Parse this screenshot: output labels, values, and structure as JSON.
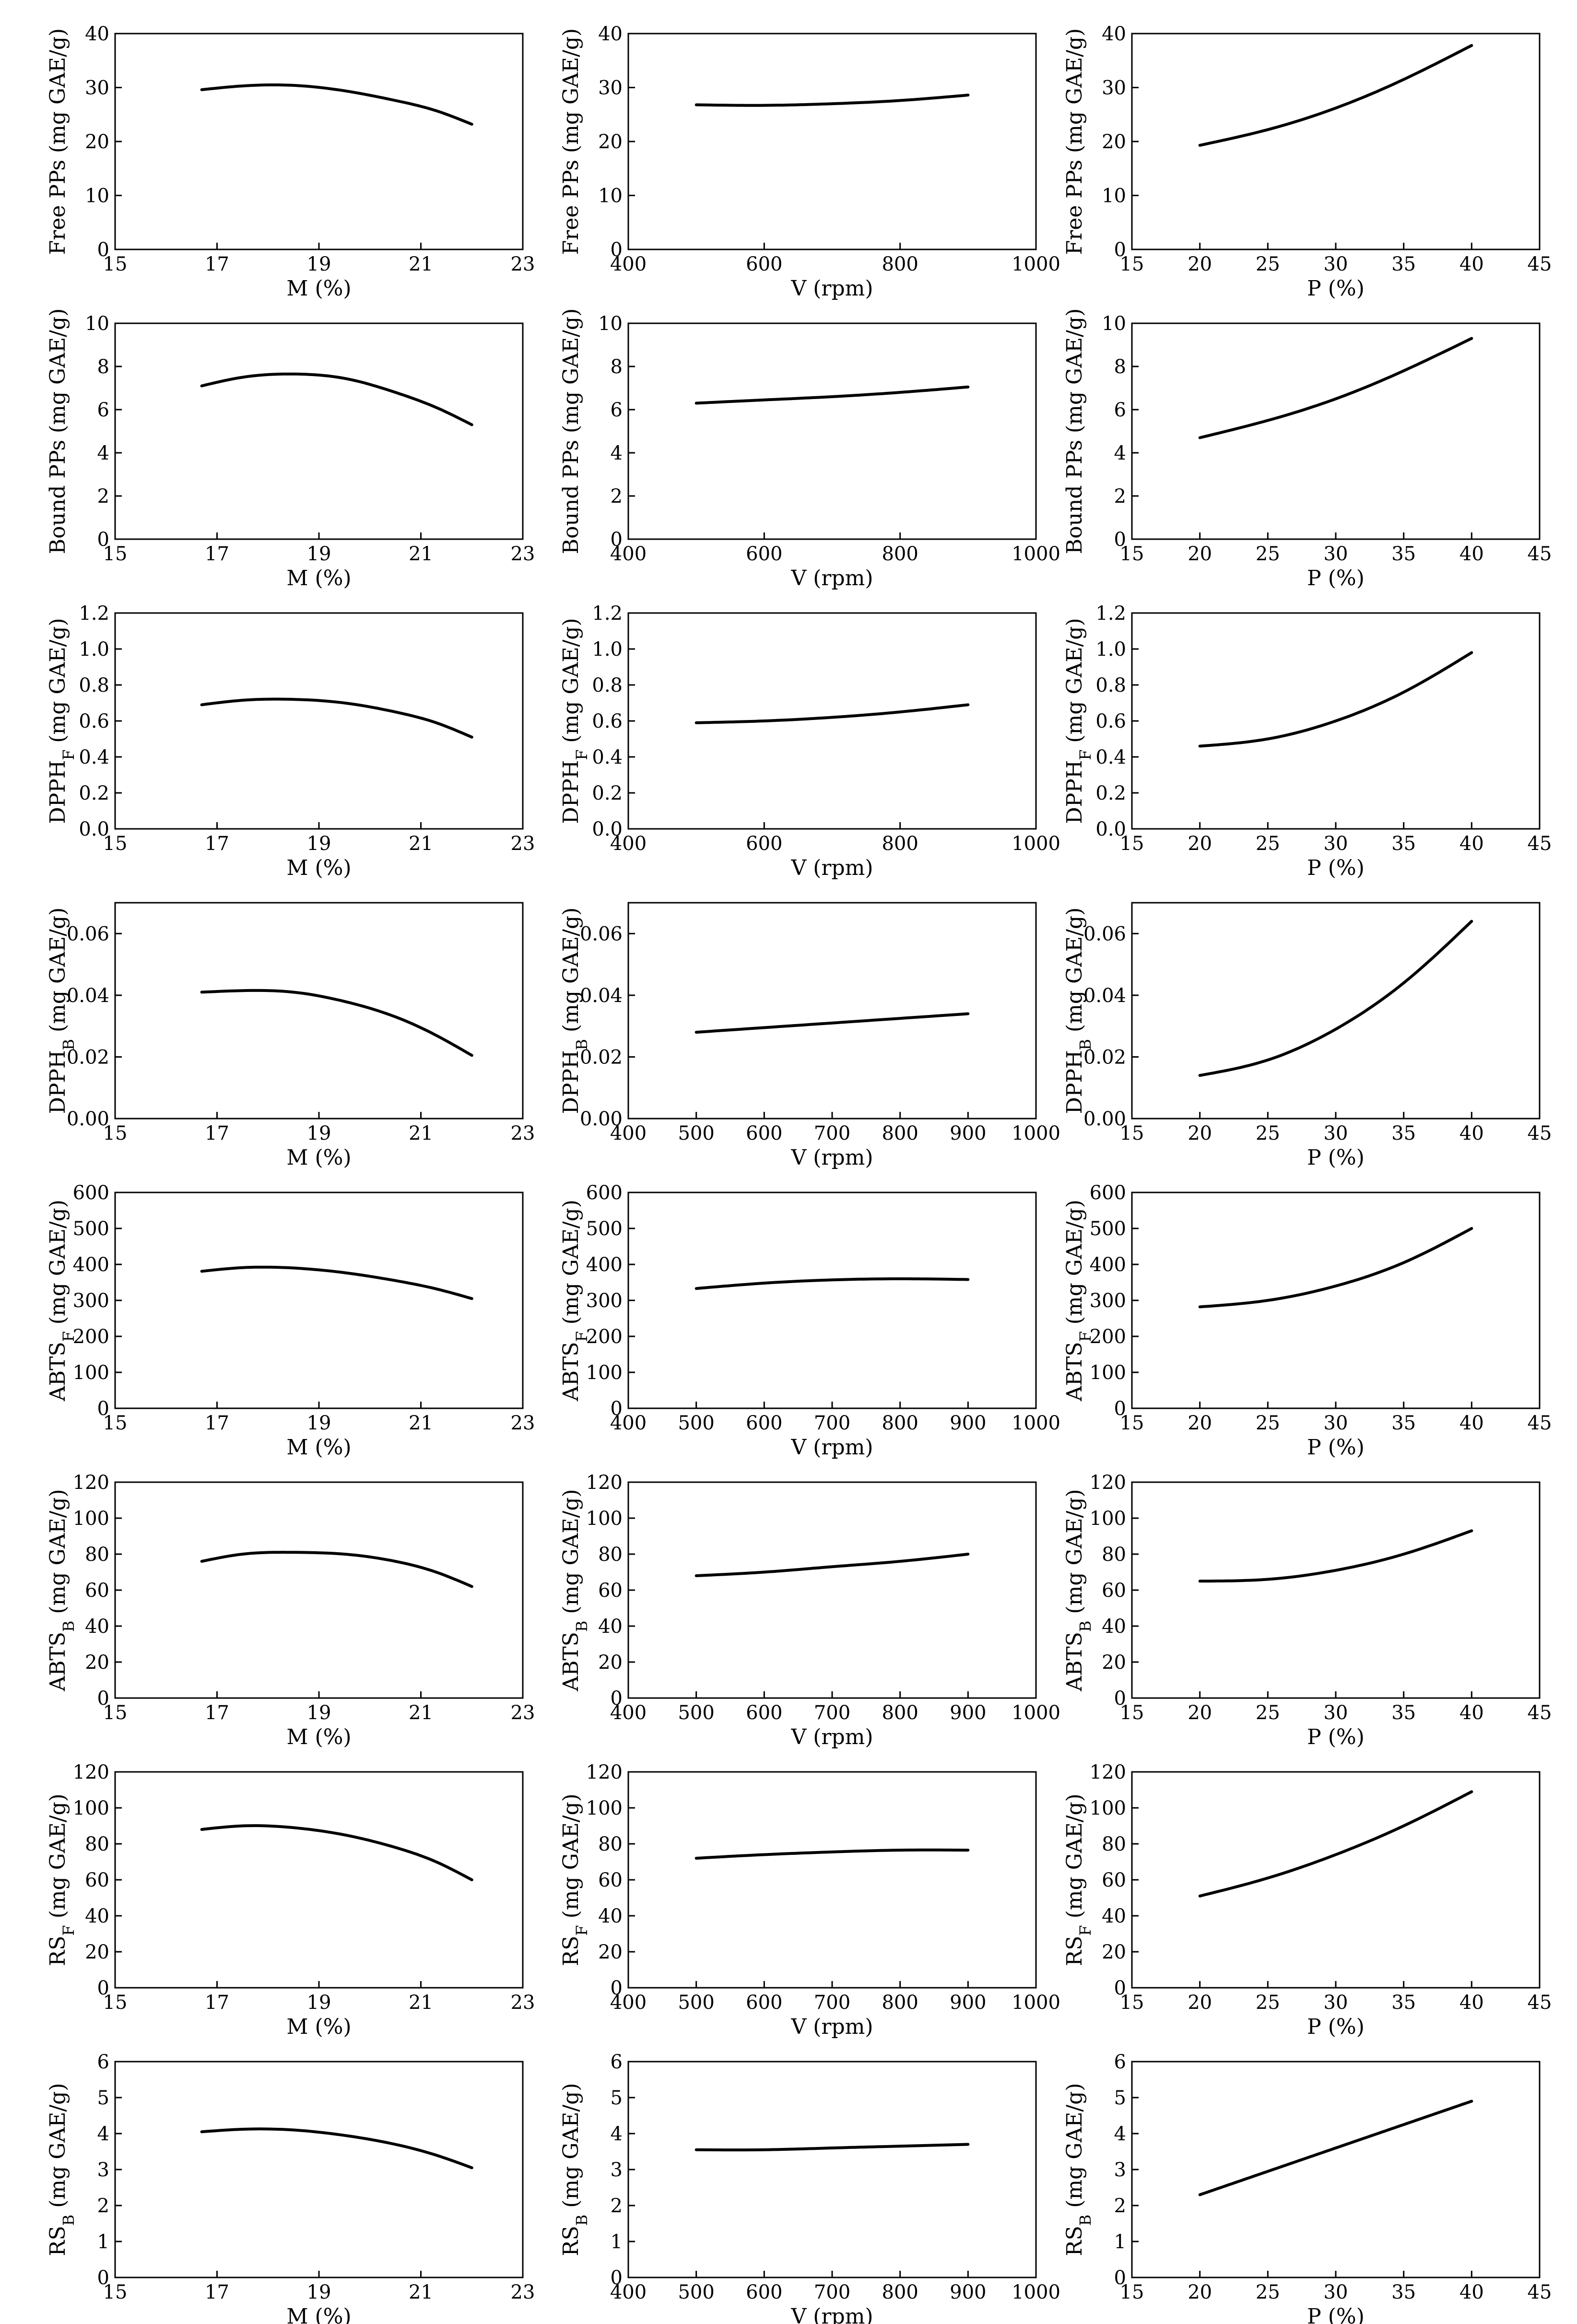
{
  "figure": {
    "rows": 8,
    "cols": 3
  },
  "chart_data": [
    {
      "type": "line",
      "xlabel": "M (%)",
      "ylabel": "Free PPs (mg GAE/g)",
      "xlim": [
        15,
        23
      ],
      "xticks": [
        15,
        17,
        19,
        21,
        23
      ],
      "ylim": [
        0,
        40
      ],
      "yticks": [
        0,
        10,
        20,
        30,
        40
      ],
      "x": [
        16.7,
        17.5,
        18.5,
        19.5,
        20.5,
        21.3,
        22
      ],
      "y": [
        29.6,
        30.3,
        30.4,
        29.4,
        27.6,
        25.7,
        23.2
      ]
    },
    {
      "type": "line",
      "xlabel": "V (rpm)",
      "ylabel": "Free PPs (mg GAE/g)",
      "xlim": [
        400,
        1000
      ],
      "xticks": [
        400,
        600,
        800,
        1000
      ],
      "ylim": [
        0,
        40
      ],
      "yticks": [
        0,
        10,
        20,
        30,
        40
      ],
      "x": [
        500,
        600,
        700,
        800,
        900
      ],
      "y": [
        26.8,
        26.7,
        27.0,
        27.6,
        28.6
      ]
    },
    {
      "type": "line",
      "xlabel": "P (%)",
      "ylabel": "Free PPs (mg GAE/g)",
      "xlim": [
        15,
        45
      ],
      "xticks": [
        15,
        20,
        25,
        30,
        35,
        40,
        45
      ],
      "ylim": [
        0,
        40
      ],
      "yticks": [
        0,
        10,
        20,
        30,
        40
      ],
      "x": [
        20,
        25,
        30,
        35,
        40
      ],
      "y": [
        19.3,
        22.2,
        26.2,
        31.5,
        37.8
      ]
    },
    {
      "type": "line",
      "xlabel": "M (%)",
      "ylabel": "Bound PPs (mg GAE/g)",
      "xlim": [
        15,
        23
      ],
      "xticks": [
        15,
        17,
        19,
        21,
        23
      ],
      "ylim": [
        0,
        10
      ],
      "yticks": [
        0,
        2,
        4,
        6,
        8,
        10
      ],
      "x": [
        16.7,
        17.5,
        18.5,
        19.5,
        20.5,
        21.3,
        22
      ],
      "y": [
        7.1,
        7.5,
        7.65,
        7.45,
        6.8,
        6.1,
        5.3
      ]
    },
    {
      "type": "line",
      "xlabel": "V (rpm)",
      "ylabel": "Bound PPs (mg GAE/g)",
      "xlim": [
        400,
        1000
      ],
      "xticks": [
        400,
        600,
        800,
        1000
      ],
      "ylim": [
        0,
        10
      ],
      "yticks": [
        0,
        2,
        4,
        6,
        8,
        10
      ],
      "x": [
        500,
        600,
        700,
        800,
        900
      ],
      "y": [
        6.3,
        6.45,
        6.6,
        6.8,
        7.05
      ]
    },
    {
      "type": "line",
      "xlabel": "P (%)",
      "ylabel": "Bound PPs (mg GAE/g)",
      "xlim": [
        15,
        45
      ],
      "xticks": [
        15,
        20,
        25,
        30,
        35,
        40,
        45
      ],
      "ylim": [
        0,
        10
      ],
      "yticks": [
        0,
        2,
        4,
        6,
        8,
        10
      ],
      "x": [
        20,
        25,
        30,
        35,
        40
      ],
      "y": [
        4.7,
        5.5,
        6.5,
        7.8,
        9.3
      ]
    },
    {
      "type": "line",
      "xlabel": "M (%)",
      "ylabel": "DPPH_F (mg GAE/g)",
      "xlim": [
        15,
        23
      ],
      "xticks": [
        15,
        17,
        19,
        21,
        23
      ],
      "ylim": [
        0,
        1.2
      ],
      "yticks": [
        0.0,
        0.2,
        0.4,
        0.6,
        0.8,
        1.0,
        1.2
      ],
      "x": [
        16.7,
        17.5,
        18.5,
        19.5,
        20.5,
        21.3,
        22
      ],
      "y": [
        0.69,
        0.715,
        0.72,
        0.7,
        0.65,
        0.59,
        0.51
      ]
    },
    {
      "type": "line",
      "xlabel": "V (rpm)",
      "ylabel": "DPPH_F (mg GAE/g)",
      "xlim": [
        400,
        1000
      ],
      "xticks": [
        400,
        600,
        800,
        1000
      ],
      "ylim": [
        0,
        1.2
      ],
      "yticks": [
        0.0,
        0.2,
        0.4,
        0.6,
        0.8,
        1.0,
        1.2
      ],
      "x": [
        500,
        600,
        700,
        800,
        900
      ],
      "y": [
        0.59,
        0.6,
        0.62,
        0.65,
        0.69
      ]
    },
    {
      "type": "line",
      "xlabel": "P (%)",
      "ylabel": "DPPH_F (mg GAE/g)",
      "xlim": [
        15,
        45
      ],
      "xticks": [
        15,
        20,
        25,
        30,
        35,
        40,
        45
      ],
      "ylim": [
        0,
        1.2
      ],
      "yticks": [
        0.0,
        0.2,
        0.4,
        0.6,
        0.8,
        1.0,
        1.2
      ],
      "x": [
        20,
        25,
        30,
        35,
        40
      ],
      "y": [
        0.46,
        0.5,
        0.6,
        0.76,
        0.98
      ]
    },
    {
      "type": "line",
      "xlabel": "M (%)",
      "ylabel": "DPPH_B (mg GAE/g)",
      "xlim": [
        15,
        23
      ],
      "xticks": [
        15,
        17,
        19,
        21,
        23
      ],
      "ylim": [
        0,
        0.07
      ],
      "yticks": [
        0.0,
        0.02,
        0.04,
        0.06
      ],
      "x": [
        16.7,
        17.5,
        18.5,
        19.5,
        20.5,
        21.3,
        22
      ],
      "y": [
        0.041,
        0.0415,
        0.041,
        0.038,
        0.033,
        0.027,
        0.0205
      ]
    },
    {
      "type": "line",
      "xlabel": "V (rpm)",
      "ylabel": "DPPH_B (mg GAE/g)",
      "xlim": [
        400,
        1000
      ],
      "xticks": [
        400,
        500,
        600,
        700,
        800,
        900,
        1000
      ],
      "ylim": [
        0,
        0.07
      ],
      "yticks": [
        0.0,
        0.02,
        0.04,
        0.06
      ],
      "x": [
        500,
        600,
        700,
        800,
        900
      ],
      "y": [
        0.028,
        0.0295,
        0.031,
        0.0325,
        0.034
      ]
    },
    {
      "type": "line",
      "xlabel": "P (%)",
      "ylabel": "DPPH_B (mg GAE/g)",
      "xlim": [
        15,
        45
      ],
      "xticks": [
        15,
        20,
        25,
        30,
        35,
        40,
        45
      ],
      "ylim": [
        0,
        0.07
      ],
      "yticks": [
        0.0,
        0.02,
        0.04,
        0.06
      ],
      "x": [
        20,
        25,
        30,
        35,
        40
      ],
      "y": [
        0.014,
        0.019,
        0.029,
        0.044,
        0.064
      ]
    },
    {
      "type": "line",
      "xlabel": "M (%)",
      "ylabel": "ABTS_F (mg GAE/g)",
      "xlim": [
        15,
        23
      ],
      "xticks": [
        15,
        17,
        19,
        21,
        23
      ],
      "ylim": [
        0,
        600
      ],
      "yticks": [
        0,
        100,
        200,
        300,
        400,
        500,
        600
      ],
      "x": [
        16.7,
        17.5,
        18.5,
        19.5,
        20.5,
        21.3,
        22
      ],
      "y": [
        381,
        391,
        390,
        377,
        355,
        332,
        305
      ]
    },
    {
      "type": "line",
      "xlabel": "V (rpm)",
      "ylabel": "ABTS_F (mg GAE/g)",
      "xlim": [
        400,
        1000
      ],
      "xticks": [
        400,
        500,
        600,
        700,
        800,
        900,
        1000
      ],
      "ylim": [
        0,
        600
      ],
      "yticks": [
        0,
        100,
        200,
        300,
        400,
        500,
        600
      ],
      "x": [
        500,
        600,
        700,
        800,
        900
      ],
      "y": [
        333,
        348,
        357,
        360,
        358
      ]
    },
    {
      "type": "line",
      "xlabel": "P (%)",
      "ylabel": "ABTS_F (mg GAE/g)",
      "xlim": [
        15,
        45
      ],
      "xticks": [
        15,
        20,
        25,
        30,
        35,
        40,
        45
      ],
      "ylim": [
        0,
        600
      ],
      "yticks": [
        0,
        100,
        200,
        300,
        400,
        500,
        600
      ],
      "x": [
        20,
        25,
        30,
        35,
        40
      ],
      "y": [
        282,
        300,
        340,
        405,
        500
      ]
    },
    {
      "type": "line",
      "xlabel": "M (%)",
      "ylabel": "ABTS_B (mg GAE/g)",
      "xlim": [
        15,
        23
      ],
      "xticks": [
        15,
        17,
        19,
        21,
        23
      ],
      "ylim": [
        0,
        120
      ],
      "yticks": [
        0,
        20,
        40,
        60,
        80,
        100,
        120
      ],
      "x": [
        16.7,
        17.5,
        18.5,
        19.5,
        20.5,
        21.3,
        22
      ],
      "y": [
        76,
        80,
        81,
        80,
        76,
        70,
        62
      ]
    },
    {
      "type": "line",
      "xlabel": "V (rpm)",
      "ylabel": "ABTS_B (mg GAE/g)",
      "xlim": [
        400,
        1000
      ],
      "xticks": [
        400,
        500,
        600,
        700,
        800,
        900,
        1000
      ],
      "ylim": [
        0,
        120
      ],
      "yticks": [
        0,
        20,
        40,
        60,
        80,
        100,
        120
      ],
      "x": [
        500,
        600,
        700,
        800,
        900
      ],
      "y": [
        68,
        70,
        73,
        76,
        80
      ]
    },
    {
      "type": "line",
      "xlabel": "P (%)",
      "ylabel": "ABTS_B (mg GAE/g)",
      "xlim": [
        15,
        45
      ],
      "xticks": [
        15,
        20,
        25,
        30,
        35,
        40,
        45
      ],
      "ylim": [
        0,
        120
      ],
      "yticks": [
        0,
        20,
        40,
        60,
        80,
        100,
        120
      ],
      "x": [
        20,
        25,
        30,
        35,
        40
      ],
      "y": [
        65,
        66,
        71,
        80,
        93
      ]
    },
    {
      "type": "line",
      "xlabel": "M (%)",
      "ylabel": "RS_F (mg GAE/g)",
      "xlim": [
        15,
        23
      ],
      "xticks": [
        15,
        17,
        19,
        21,
        23
      ],
      "ylim": [
        0,
        120
      ],
      "yticks": [
        0,
        20,
        40,
        60,
        80,
        100,
        120
      ],
      "x": [
        16.7,
        17.5,
        18.5,
        19.5,
        20.5,
        21.3,
        22
      ],
      "y": [
        88,
        90,
        89,
        85,
        78,
        70,
        60
      ]
    },
    {
      "type": "line",
      "xlabel": "V (rpm)",
      "ylabel": "RS_F (mg GAE/g)",
      "xlim": [
        400,
        1000
      ],
      "xticks": [
        400,
        500,
        600,
        700,
        800,
        900,
        1000
      ],
      "ylim": [
        0,
        120
      ],
      "yticks": [
        0,
        20,
        40,
        60,
        80,
        100,
        120
      ],
      "x": [
        500,
        600,
        700,
        800,
        900
      ],
      "y": [
        72,
        74,
        75.5,
        76.5,
        76.5
      ]
    },
    {
      "type": "line",
      "xlabel": "P (%)",
      "ylabel": "RS_F (mg GAE/g)",
      "xlim": [
        15,
        45
      ],
      "xticks": [
        15,
        20,
        25,
        30,
        35,
        40,
        45
      ],
      "ylim": [
        0,
        120
      ],
      "yticks": [
        0,
        20,
        40,
        60,
        80,
        100,
        120
      ],
      "x": [
        20,
        25,
        30,
        35,
        40
      ],
      "y": [
        51,
        61,
        74,
        90,
        109
      ]
    },
    {
      "type": "line",
      "xlabel": "M (%)",
      "ylabel": "RS_B (mg GAE/g)",
      "xlim": [
        15,
        23
      ],
      "xticks": [
        15,
        17,
        19,
        21,
        23
      ],
      "ylim": [
        0,
        6
      ],
      "yticks": [
        0,
        1,
        2,
        3,
        4,
        5,
        6
      ],
      "x": [
        16.7,
        17.5,
        18.5,
        19.5,
        20.5,
        21.3,
        22
      ],
      "y": [
        4.05,
        4.12,
        4.1,
        3.95,
        3.7,
        3.4,
        3.05
      ]
    },
    {
      "type": "line",
      "xlabel": "V (rpm)",
      "ylabel": "RS_B (mg GAE/g)",
      "xlim": [
        400,
        1000
      ],
      "xticks": [
        400,
        500,
        600,
        700,
        800,
        900,
        1000
      ],
      "ylim": [
        0,
        6
      ],
      "yticks": [
        0,
        1,
        2,
        3,
        4,
        5,
        6
      ],
      "x": [
        500,
        600,
        700,
        800,
        900
      ],
      "y": [
        3.55,
        3.55,
        3.6,
        3.65,
        3.7
      ]
    },
    {
      "type": "line",
      "xlabel": "P (%)",
      "ylabel": "RS_B (mg GAE/g)",
      "xlim": [
        15,
        45
      ],
      "xticks": [
        15,
        20,
        25,
        30,
        35,
        40,
        45
      ],
      "ylim": [
        0,
        6
      ],
      "yticks": [
        0,
        1,
        2,
        3,
        4,
        5,
        6
      ],
      "x": [
        20,
        25,
        30,
        35,
        40
      ],
      "y": [
        2.3,
        2.95,
        3.6,
        4.25,
        4.9
      ]
    }
  ]
}
